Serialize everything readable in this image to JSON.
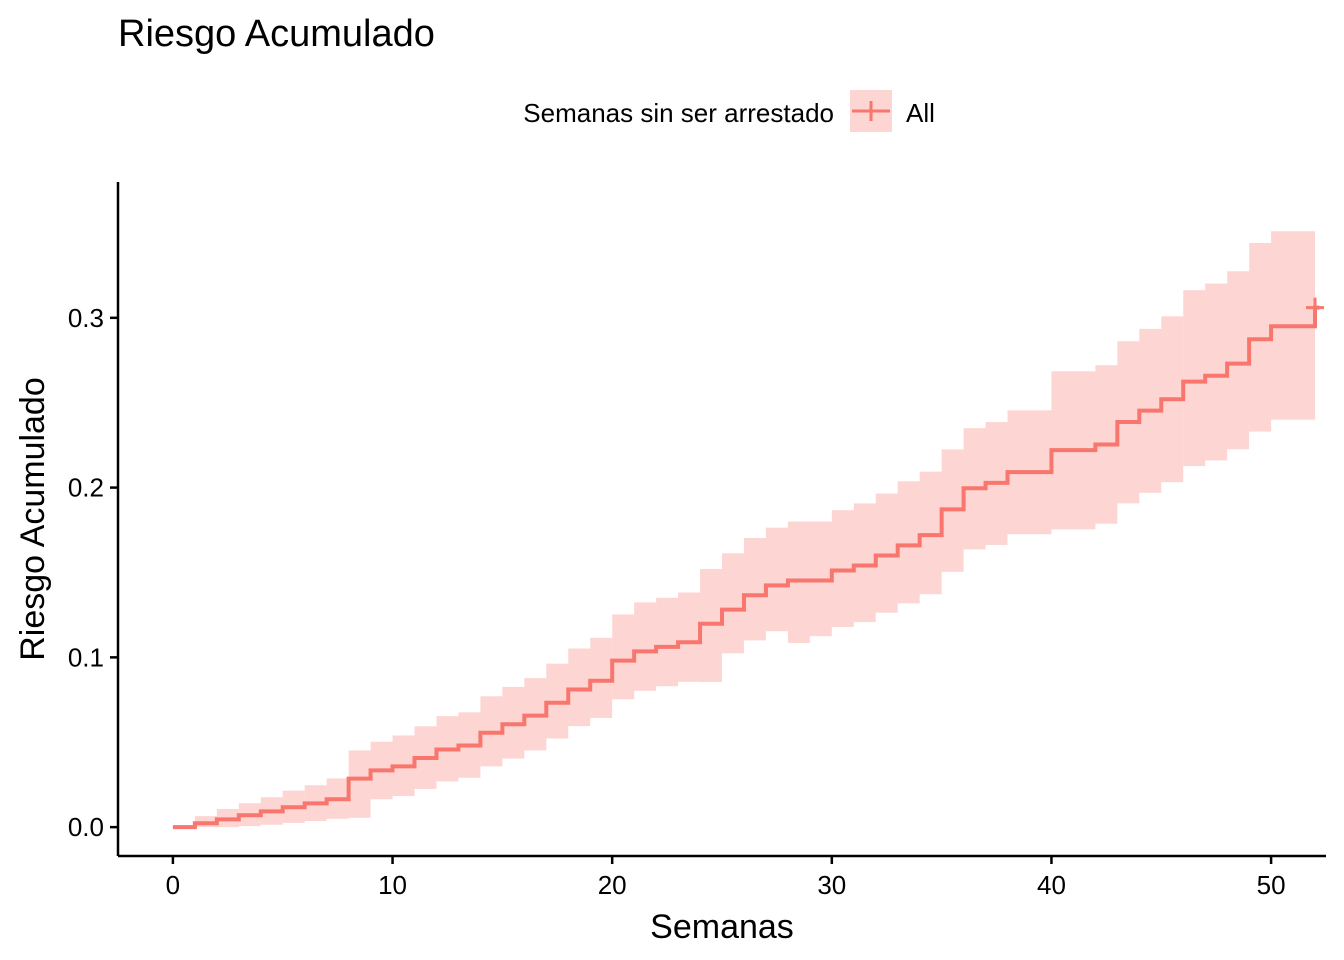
{
  "chart_data": {
    "type": "line",
    "title": "Riesgo Acumulado",
    "xlabel": "Semanas",
    "ylabel": "Riesgo Acumulado",
    "xlim": [
      -2.5,
      52.5
    ],
    "ylim": [
      -0.017,
      0.38
    ],
    "x_ticks": [
      0,
      10,
      20,
      30,
      40,
      50
    ],
    "x_tick_labels": [
      "0",
      "10",
      "20",
      "30",
      "40",
      "50"
    ],
    "y_ticks": [
      0.0,
      0.1,
      0.2,
      0.3
    ],
    "y_tick_labels": [
      "0.0",
      "0.1",
      "0.2",
      "0.3"
    ],
    "grid": false,
    "legend": {
      "title": "Semanas sin ser arrestado",
      "placement": "top",
      "entries": [
        {
          "label": "All",
          "color": "#F8766D"
        }
      ]
    },
    "colors": {
      "line": "#F8766D",
      "band": "#F8766D",
      "band_opacity": 0.3,
      "axis": "#000000"
    },
    "series": [
      {
        "name": "All",
        "step": true,
        "x": [
          0,
          1,
          2,
          3,
          4,
          5,
          6,
          7,
          8,
          9,
          10,
          11,
          12,
          13,
          14,
          15,
          16,
          17,
          18,
          19,
          20,
          21,
          22,
          23,
          24,
          25,
          26,
          27,
          28,
          29,
          30,
          31,
          32,
          33,
          34,
          35,
          36,
          37,
          38,
          39,
          40,
          41,
          42,
          43,
          44,
          45,
          46,
          47,
          48,
          49,
          50,
          52
        ],
        "y": [
          0.0,
          0.0023,
          0.0046,
          0.007,
          0.0093,
          0.0117,
          0.014,
          0.0164,
          0.0286,
          0.0334,
          0.0358,
          0.0407,
          0.0457,
          0.0481,
          0.0556,
          0.0606,
          0.0657,
          0.0733,
          0.0811,
          0.0862,
          0.0981,
          0.1035,
          0.1062,
          0.1089,
          0.1198,
          0.1281,
          0.1366,
          0.1424,
          0.1453,
          0.1453,
          0.1512,
          0.1541,
          0.16,
          0.166,
          0.172,
          0.1872,
          0.1996,
          0.2028,
          0.2091,
          0.2091,
          0.2221,
          0.2221,
          0.2254,
          0.2386,
          0.2453,
          0.252,
          0.2624,
          0.2659,
          0.273,
          0.2874,
          0.295,
          0.306
        ],
        "lower": [
          0.0,
          0.0,
          0.0,
          0.0006,
          0.0014,
          0.0025,
          0.0036,
          0.0049,
          0.0055,
          0.0164,
          0.0183,
          0.0225,
          0.0269,
          0.0291,
          0.0358,
          0.0404,
          0.0452,
          0.0522,
          0.0595,
          0.0643,
          0.0753,
          0.0803,
          0.083,
          0.0856,
          0.0855,
          0.1024,
          0.11,
          0.1154,
          0.1085,
          0.1125,
          0.1179,
          0.1208,
          0.1263,
          0.1318,
          0.1372,
          0.1504,
          0.1636,
          0.1662,
          0.1725,
          0.1725,
          0.1754,
          0.1754,
          0.1787,
          0.1907,
          0.1969,
          0.2032,
          0.2127,
          0.216,
          0.2226,
          0.233,
          0.24,
          0.242
        ],
        "upper": [
          0.0,
          0.0065,
          0.0107,
          0.0141,
          0.0176,
          0.0215,
          0.0247,
          0.0287,
          0.0452,
          0.0503,
          0.054,
          0.0594,
          0.0654,
          0.0676,
          0.0771,
          0.0826,
          0.0878,
          0.0963,
          0.1052,
          0.1115,
          0.1253,
          0.1324,
          0.1351,
          0.1382,
          0.1521,
          0.1613,
          0.1703,
          0.1764,
          0.18,
          0.18,
          0.1867,
          0.1907,
          0.1965,
          0.2037,
          0.2094,
          0.2225,
          0.235,
          0.2386,
          0.2455,
          0.2455,
          0.2685,
          0.2685,
          0.2721,
          0.2862,
          0.2935,
          0.3009,
          0.3163,
          0.3202,
          0.3274,
          0.3441,
          0.351,
          0.351
        ]
      }
    ],
    "censor_marks": [
      {
        "x": 52,
        "y": 0.306
      }
    ]
  }
}
